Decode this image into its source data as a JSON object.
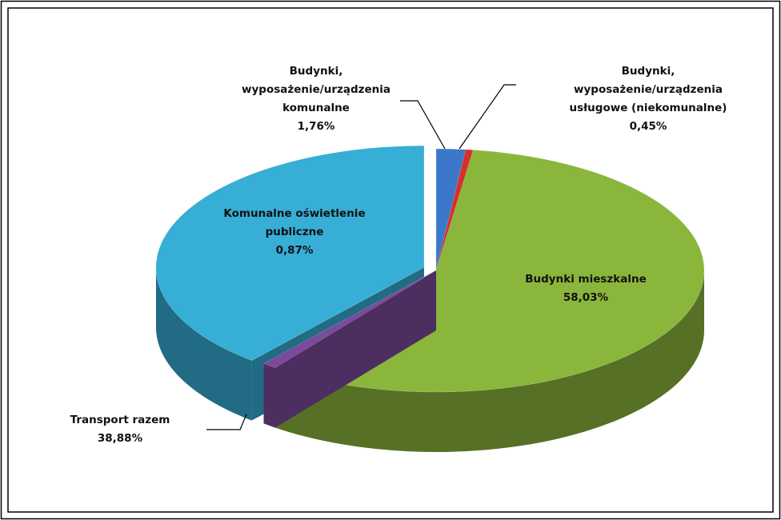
{
  "chart_data": {
    "type": "pie",
    "categories": [
      "Budynki, wyposażenie/urządzenia komunalne",
      "Budynki, wyposażenie/urządzenia usługowe (niekomunalne)",
      "Budynki mieszkalne",
      "Komunalne oświetlenie publiczne",
      "Transport razem"
    ],
    "values": [
      1.76,
      0.45,
      58.03,
      0.87,
      38.88
    ],
    "value_labels": [
      "1,76%",
      "0,45%",
      "58,03%",
      "0,87%",
      "38,88%"
    ],
    "colors": [
      "#3b78c9",
      "#d7302c",
      "#8ab63c",
      "#7a4a9c",
      "#36aed5"
    ],
    "exploded": [
      false,
      false,
      false,
      false,
      true
    ]
  }
}
